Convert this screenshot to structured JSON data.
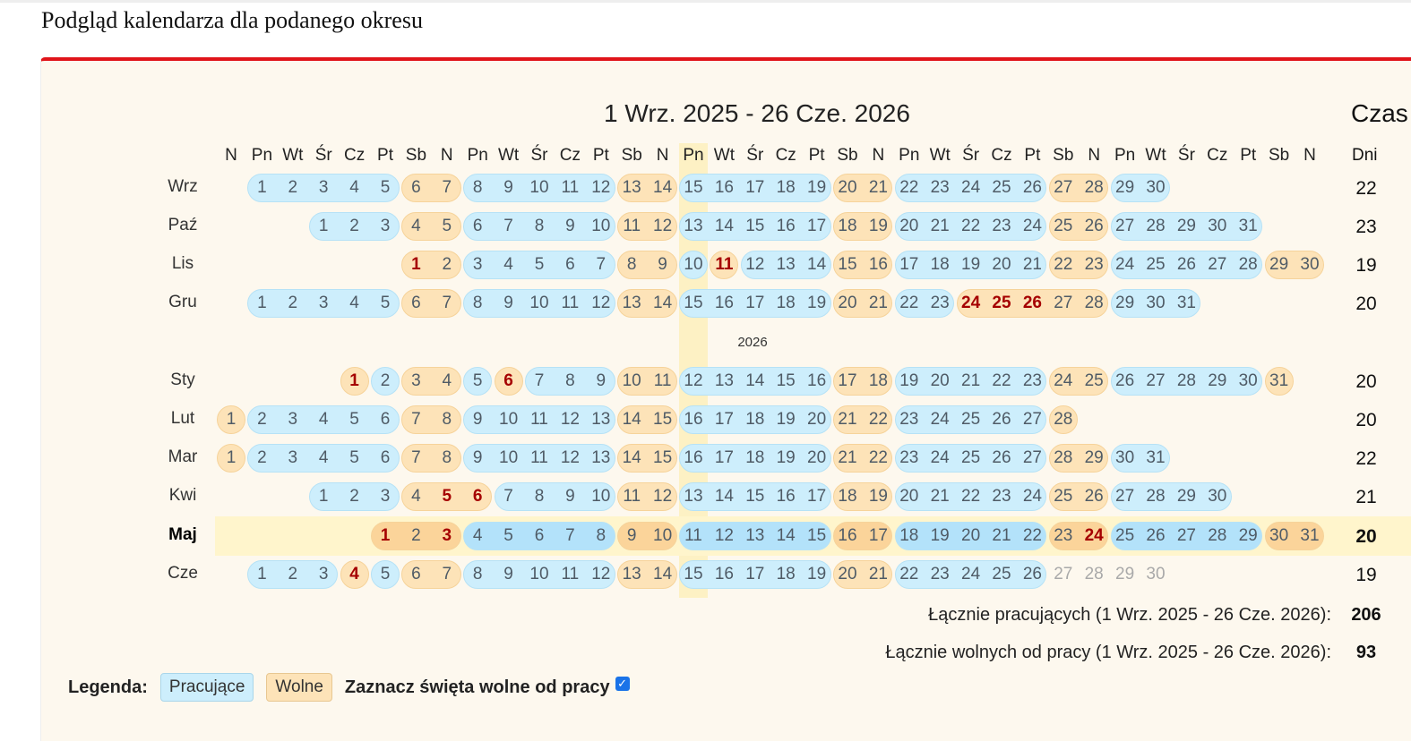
{
  "page_title": "Podgląd kalendarza dla podanego okresu",
  "range_title": "1 Wrz. 2025 - 26 Cze. 2026",
  "side_header": "Czas",
  "days_header": "Dni",
  "weekday_headers": [
    "N",
    "Pn",
    "Wt",
    "Śr",
    "Cz",
    "Pt",
    "Sb",
    "N",
    "Pn",
    "Wt",
    "Śr",
    "Cz",
    "Pt",
    "Sb",
    "N",
    "Pn",
    "Wt",
    "Śr",
    "Cz",
    "Pt",
    "Sb",
    "N",
    "Pn",
    "Wt",
    "Śr",
    "Cz",
    "Pt",
    "Sb",
    "N",
    "Pn",
    "Wt",
    "Śr",
    "Cz",
    "Pt",
    "Sb",
    "N"
  ],
  "highlight_weekday_column": 15,
  "year_separator": "2026",
  "months": [
    {
      "label": "Wrz",
      "year": 2025,
      "month": 9,
      "days": 30,
      "holidays": [],
      "working_days": "22"
    },
    {
      "label": "Paź",
      "year": 2025,
      "month": 10,
      "days": 31,
      "holidays": [],
      "working_days": "23"
    },
    {
      "label": "Lis",
      "year": 2025,
      "month": 11,
      "days": 30,
      "holidays": [
        1,
        11
      ],
      "working_days": "19"
    },
    {
      "label": "Gru",
      "year": 2025,
      "month": 12,
      "days": 31,
      "holidays": [
        24,
        25,
        26
      ],
      "working_days": "20"
    },
    {
      "label": "Sty",
      "year": 2026,
      "month": 1,
      "days": 31,
      "holidays": [
        1,
        6
      ],
      "working_days": "20"
    },
    {
      "label": "Lut",
      "year": 2026,
      "month": 2,
      "days": 28,
      "holidays": [],
      "working_days": "20"
    },
    {
      "label": "Mar",
      "year": 2026,
      "month": 3,
      "days": 31,
      "holidays": [],
      "working_days": "22"
    },
    {
      "label": "Kwi",
      "year": 2026,
      "month": 4,
      "days": 30,
      "holidays": [
        5,
        6
      ],
      "working_days": "21"
    },
    {
      "label": "Maj",
      "year": 2026,
      "month": 5,
      "days": 31,
      "holidays": [
        1,
        3,
        24
      ],
      "working_days": "20",
      "current": true
    },
    {
      "label": "Cze",
      "year": 2026,
      "month": 6,
      "days": 30,
      "holidays": [
        4
      ],
      "working_days": "19",
      "last_day_in_range": 26
    }
  ],
  "totals": {
    "working_label": "Łącznie pracujących (1 Wrz. 2025 - 26 Cze. 2026):",
    "working_value": "206",
    "free_label": "Łącznie wolnych od pracy (1 Wrz. 2025 - 26 Cze. 2026):",
    "free_value": "93"
  },
  "legend": {
    "label": "Legenda:",
    "working": "Pracujące",
    "free": "Wolne",
    "checkbox_label": "Zaznacz święta wolne od pracy",
    "checkbox_checked": true
  },
  "colors": {
    "accent": "#e0141a",
    "working": "#cdeefc",
    "free": "#fde3b8",
    "holiday_text": "#a50000"
  }
}
